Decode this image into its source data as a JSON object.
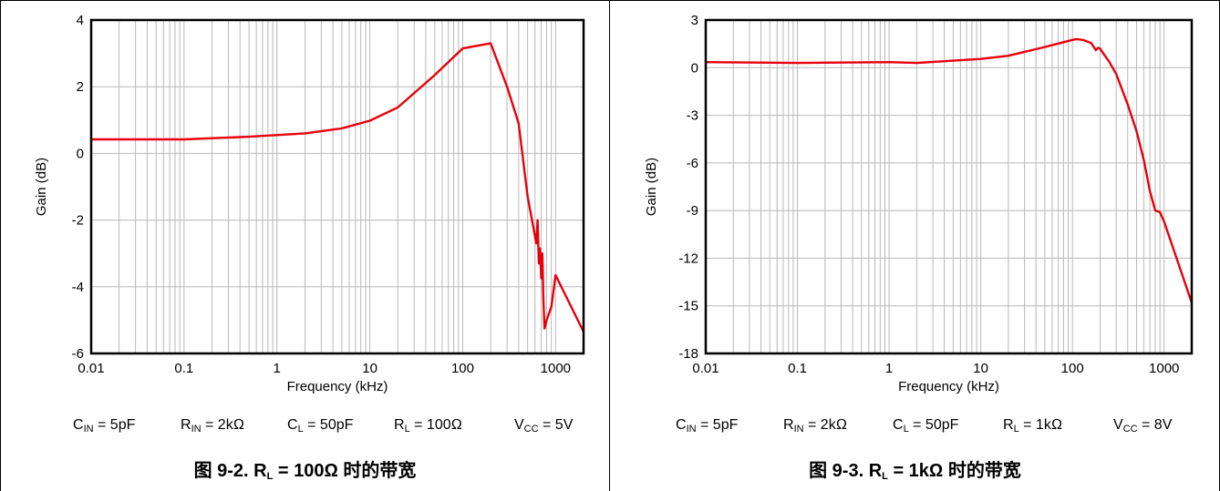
{
  "charts": [
    {
      "conditions": {
        "c_in": {
          "sym": "C",
          "sub": "IN",
          "rest": " = 5pF"
        },
        "r_in": {
          "sym": "R",
          "sub": "IN",
          "rest": " = 2kΩ"
        },
        "c_l": {
          "sym": "C",
          "sub": "L",
          "rest": " = 50pF"
        },
        "r_l": {
          "sym": "R",
          "sub": "L",
          "rest": " = 100Ω"
        },
        "v_cc": {
          "sym": "V",
          "sub": "CC",
          "rest": " = 5V"
        }
      },
      "caption": {
        "prefix": "图 9-2. R",
        "sub": "L",
        "suffix": " = 100Ω 时的带宽"
      }
    },
    {
      "conditions": {
        "c_in": {
          "sym": "C",
          "sub": "IN",
          "rest": " = 5pF"
        },
        "r_in": {
          "sym": "R",
          "sub": "IN",
          "rest": " = 2kΩ"
        },
        "c_l": {
          "sym": "C",
          "sub": "L",
          "rest": " = 50pF"
        },
        "r_l": {
          "sym": "R",
          "sub": "L",
          "rest": " = 1kΩ"
        },
        "v_cc": {
          "sym": "V",
          "sub": "CC",
          "rest": " = 8V"
        }
      },
      "caption": {
        "prefix": "图 9-3. R",
        "sub": "L",
        "suffix": " = 1kΩ 时的带宽"
      }
    }
  ],
  "chart_data": [
    {
      "type": "line",
      "xlabel": "Frequency (kHz)",
      "ylabel": "Gain (dB)",
      "x_scale": "log",
      "xlim": [
        0.01,
        2000
      ],
      "ylim": [
        -6,
        4
      ],
      "x_ticks": [
        "0.01",
        "0.1",
        "1",
        "10",
        "100",
        "1000"
      ],
      "y_ticks": [
        "4",
        "2",
        "0",
        "-2",
        "-4",
        "-6"
      ],
      "y_tick_values": [
        4,
        2,
        0,
        -2,
        -4,
        -6
      ],
      "grid": true,
      "line_color": "#e8000b",
      "series": [
        {
          "x": [
            0.01,
            0.1,
            0.5,
            2,
            5,
            10,
            20,
            50,
            100,
            200,
            300,
            400,
            500,
            620,
            640,
            660,
            680,
            700,
            720,
            740,
            760,
            800,
            900,
            1000,
            2000
          ],
          "y": [
            0.42,
            0.42,
            0.5,
            0.6,
            0.75,
            0.98,
            1.38,
            2.35,
            3.15,
            3.3,
            2.0,
            0.9,
            -1.3,
            -2.7,
            -2.0,
            -3.3,
            -2.85,
            -3.75,
            -3.0,
            -4.4,
            -5.25,
            -5.0,
            -4.6,
            -3.65,
            -5.35
          ]
        }
      ]
    },
    {
      "type": "line",
      "xlabel": "Frequency (kHz)",
      "ylabel": "Gain (dB)",
      "x_scale": "log",
      "xlim": [
        0.01,
        2000
      ],
      "ylim": [
        -18,
        3
      ],
      "x_ticks": [
        "0.01",
        "0.1",
        "1",
        "10",
        "100",
        "1000"
      ],
      "y_ticks": [
        "3",
        "0",
        "-3",
        "-6",
        "-9",
        "-12",
        "-15",
        "-18"
      ],
      "y_tick_values": [
        3,
        0,
        -3,
        -6,
        -9,
        -12,
        -15,
        -18
      ],
      "grid": true,
      "line_color": "#e8000b",
      "series": [
        {
          "x": [
            0.01,
            0.1,
            1,
            2,
            10,
            20,
            50,
            100,
            110,
            130,
            160,
            180,
            190,
            200,
            220,
            250,
            300,
            400,
            500,
            600,
            700,
            800,
            900,
            1000,
            2000
          ],
          "y": [
            0.35,
            0.3,
            0.35,
            0.3,
            0.55,
            0.75,
            1.3,
            1.75,
            1.8,
            1.75,
            1.55,
            1.1,
            1.25,
            1.2,
            0.85,
            0.4,
            -0.4,
            -2.3,
            -4.0,
            -5.8,
            -7.8,
            -9.0,
            -9.1,
            -9.7,
            -14.8
          ]
        }
      ]
    }
  ]
}
